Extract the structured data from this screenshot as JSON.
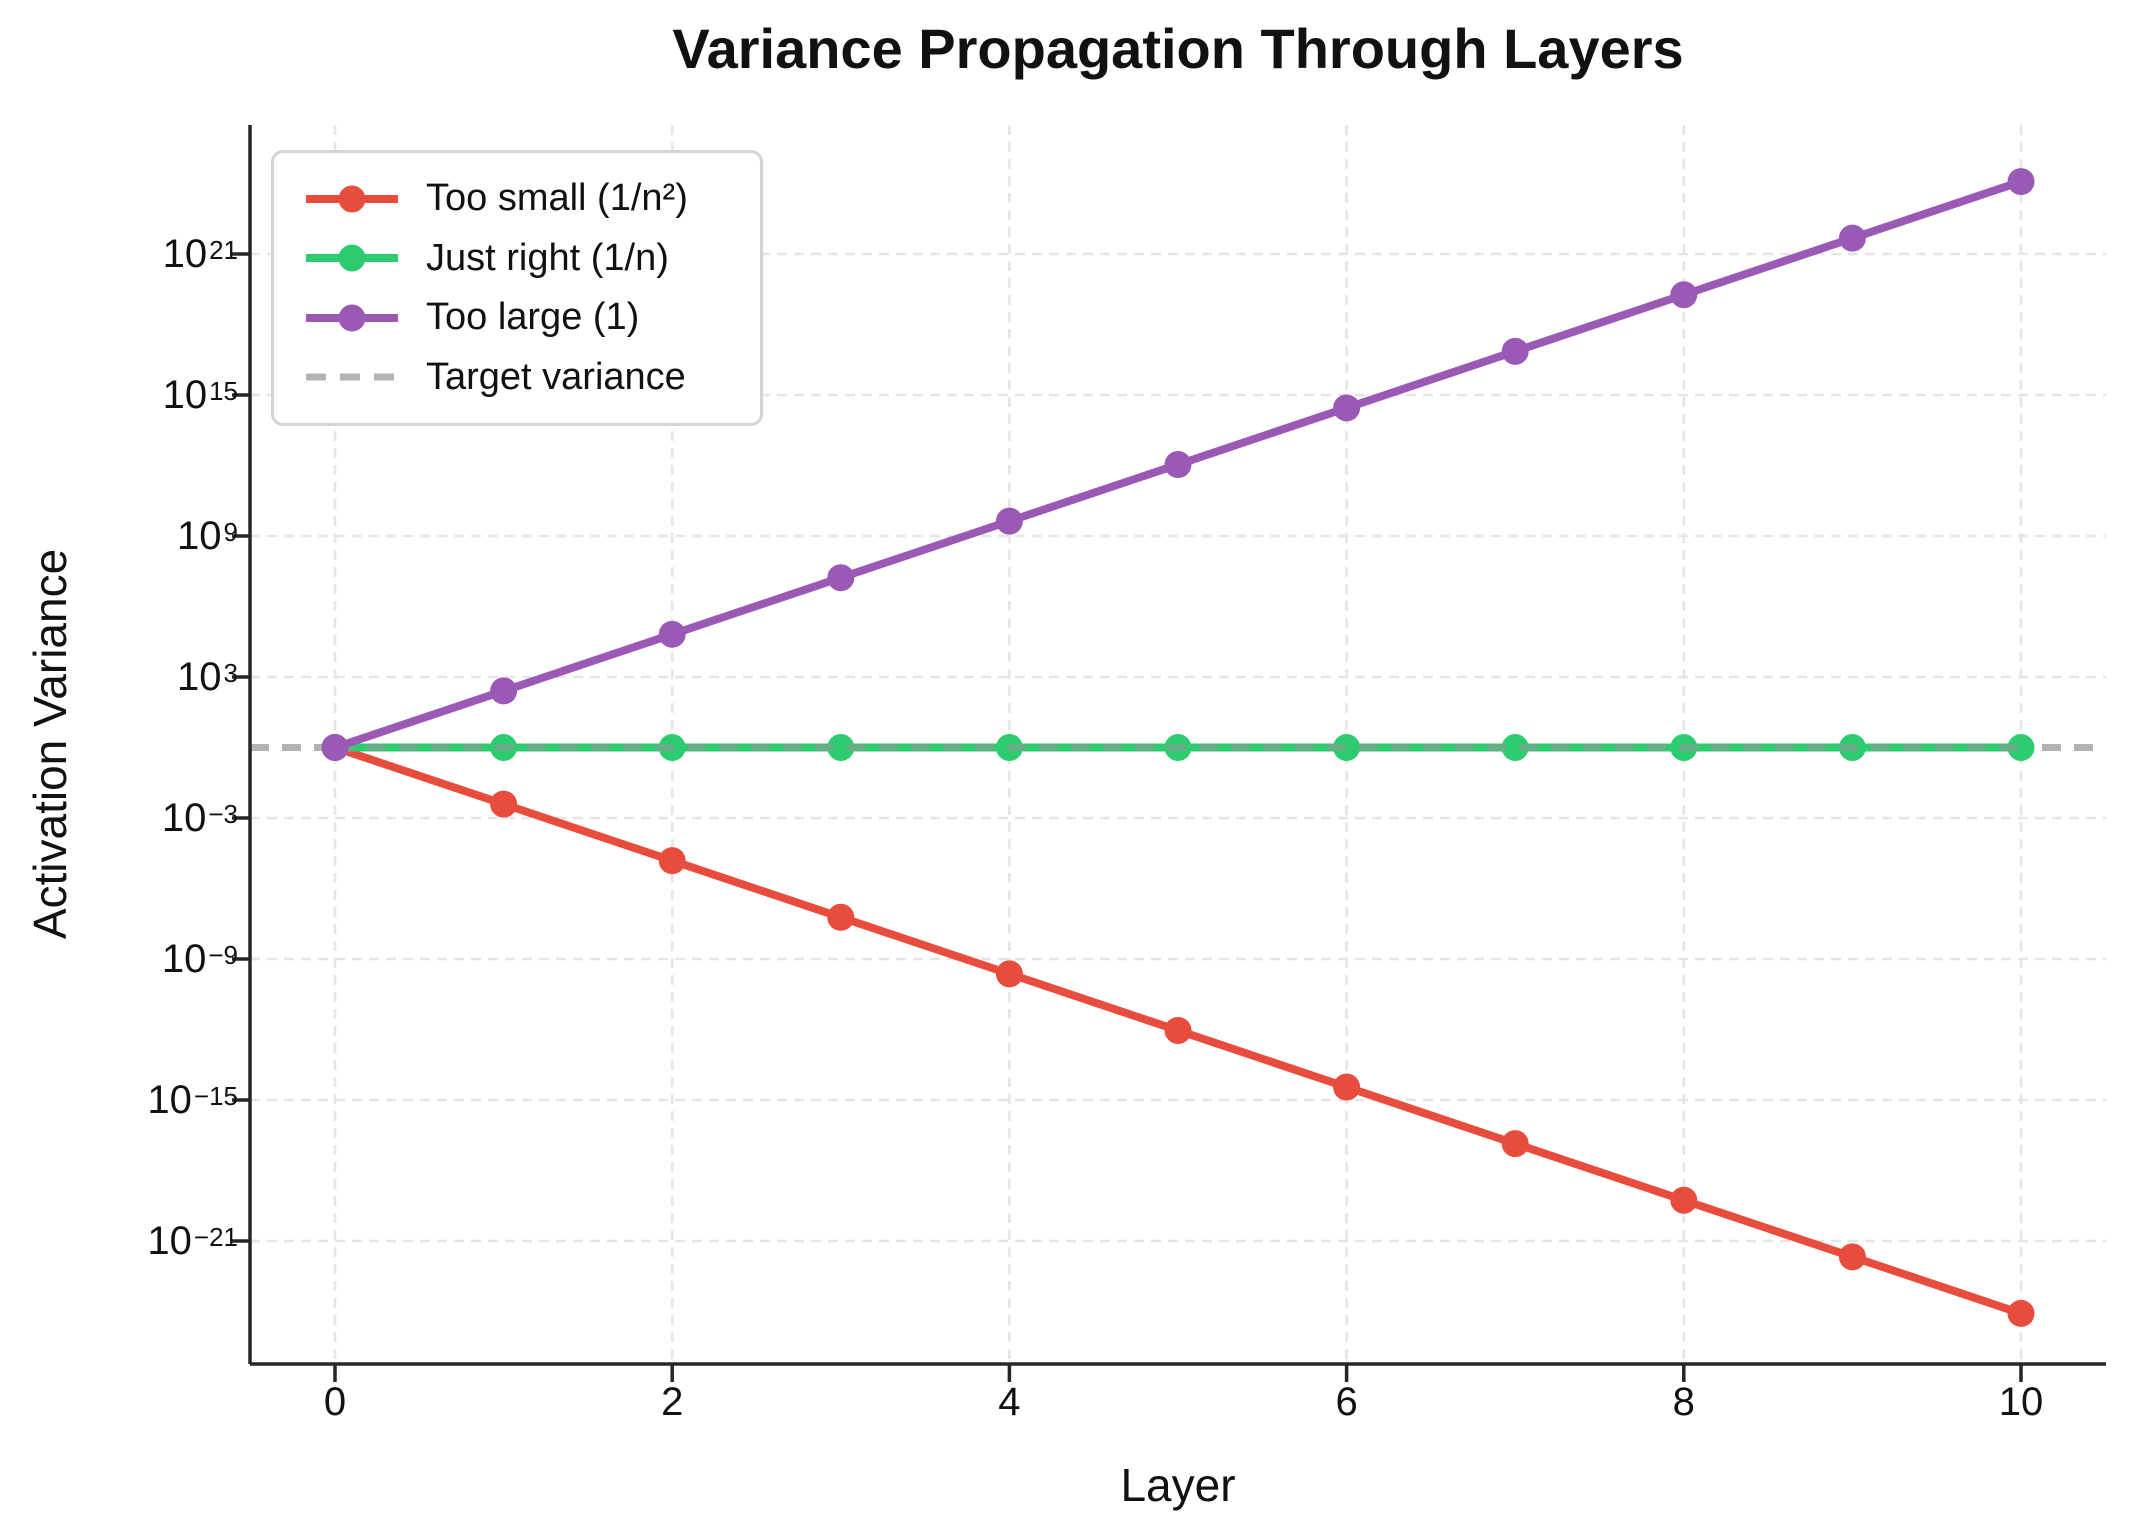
{
  "chart_data": {
    "type": "line",
    "title": "Variance Propagation Through Layers",
    "xlabel": "Layer",
    "ylabel": "Activation Variance",
    "x": [
      0,
      1,
      2,
      3,
      4,
      5,
      6,
      7,
      8,
      9,
      10
    ],
    "series": [
      {
        "name": "Too small (1/n²)",
        "color": "#e74c3c",
        "marker": "circle",
        "values": [
          1.0,
          0.00390625,
          1.52587890625e-05,
          5.960464477539063e-08,
          2.3283064365386963e-10,
          9.094947017729282e-13,
          3.552713678800501e-15,
          1.3877787807814457e-17,
          5.421010862427522e-20,
          2.117582368135751e-22,
          8.271806125530277e-25
        ]
      },
      {
        "name": "Just right (1/n)",
        "color": "#2ecc71",
        "marker": "circle",
        "values": [
          1.0,
          1.0,
          1.0,
          1.0,
          1.0,
          1.0,
          1.0,
          1.0,
          1.0,
          1.0,
          1.0
        ]
      },
      {
        "name": "Too large (1)",
        "color": "#9b59b6",
        "marker": "circle",
        "values": [
          1.0,
          256,
          65536,
          16777216,
          4294967296,
          1099511627776,
          281474976710656,
          72057594037927936,
          1.8446744073709552e+19,
          4.722366482869645e+21,
          1.2089258196146292e+24
        ]
      }
    ],
    "target_line": {
      "label": "Target variance",
      "value": 1.0,
      "color": "#b3b3b3",
      "style": "dashed"
    },
    "x_ticks": [
      0,
      2,
      4,
      6,
      8,
      10
    ],
    "y_tick_exponents": [
      21,
      15,
      9,
      3,
      -3,
      -9,
      -15,
      -21
    ],
    "y_scale": "log",
    "xlim": [
      -0.49,
      10.5
    ],
    "ylim_log10": [
      -26.2,
      26.5
    ],
    "grid": true,
    "legend": {
      "position": "upper left",
      "entries": [
        "Too small (1/n²)",
        "Just right (1/n)",
        "Too large (1)",
        "Target variance"
      ]
    }
  }
}
